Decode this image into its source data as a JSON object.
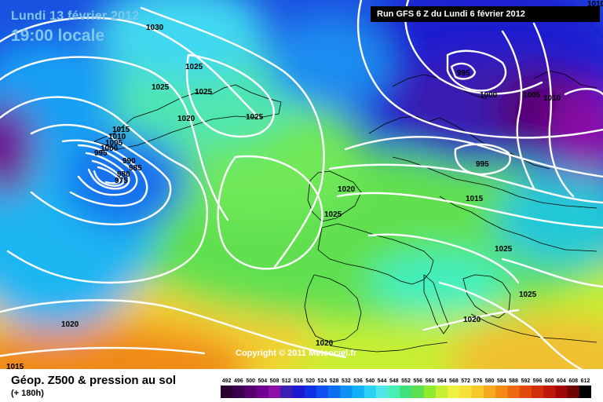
{
  "header": {
    "date": "Lundi 13 février 2012",
    "time": "19:00 locale",
    "run": "Run GFS 6 Z du Lundi 6 février 2012"
  },
  "footer": {
    "variable": "Géop. Z500 & pression au sol",
    "lead": "(+ 180h)",
    "copyright": "Copyright © 2011 Meteociel.fr"
  },
  "scale": {
    "labels": [
      "492",
      "496",
      "500",
      "504",
      "508",
      "512",
      "516",
      "520",
      "524",
      "528",
      "532",
      "536",
      "540",
      "544",
      "548",
      "552",
      "556",
      "560",
      "564",
      "568",
      "572",
      "576",
      "580",
      "584",
      "588",
      "592",
      "596",
      "600",
      "604",
      "608",
      "612"
    ],
    "colors": [
      "#2a0030",
      "#3d0050",
      "#560070",
      "#700090",
      "#8a10a8",
      "#3b1fb0",
      "#1a1ad0",
      "#1030e8",
      "#1050f0",
      "#0a70f0",
      "#0c90f4",
      "#12b0f6",
      "#2ad0f6",
      "#50e6e6",
      "#46f0b4",
      "#40e07a",
      "#5ae050",
      "#90ea30",
      "#c8f030",
      "#f0f040",
      "#f4e036",
      "#f6c828",
      "#f6a81e",
      "#f48a14",
      "#ee6a10",
      "#e24a0c",
      "#d2300a",
      "#c01808",
      "#a00808",
      "#700404",
      "#000000"
    ]
  },
  "isobars": [
    "1030",
    "1025",
    "1025",
    "1025",
    "1025",
    "1020",
    "1015",
    "1010",
    "1005",
    "1000",
    "995",
    "990",
    "985",
    "980",
    "975",
    "995",
    "1000",
    "1005",
    "1010",
    "995",
    "1015",
    "1020",
    "1025",
    "1025",
    "1025",
    "1020",
    "1020",
    "1020",
    "1015",
    "1010"
  ]
}
